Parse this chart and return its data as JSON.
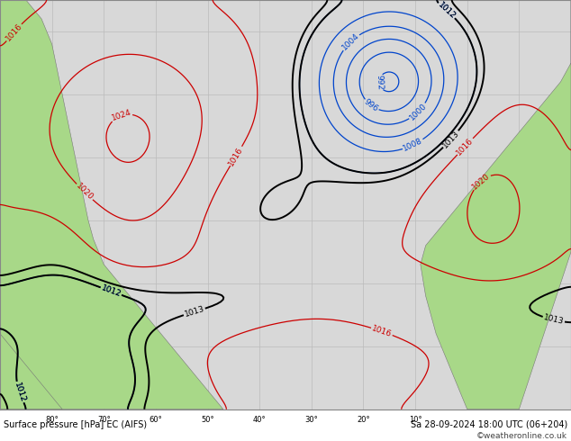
{
  "title_left": "Surface pressure [hPa] EC (AIFS)",
  "title_right": "Sa 28-09-2024 18:00 UTC (06+204)",
  "copyright": "©weatheronline.co.uk",
  "bg_ocean": "#d8d8d8",
  "bg_land": "#a8d888",
  "grid_color": "#bbbbbb",
  "border_color": "#888888",
  "fig_width": 6.34,
  "fig_height": 4.9,
  "dpi": 100,
  "lon_min": -90,
  "lon_max": 20,
  "lat_min": 10,
  "lat_max": 75
}
